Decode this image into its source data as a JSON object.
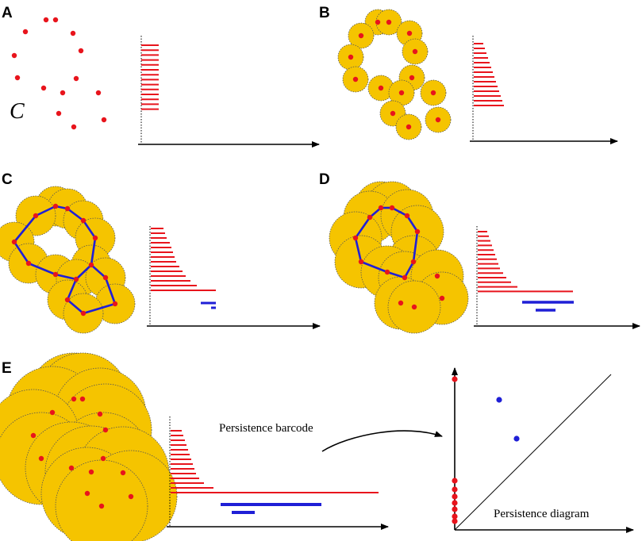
{
  "figure": {
    "panels": [
      {
        "letter": "A",
        "cloud_label": "C"
      },
      {
        "letter": "B"
      },
      {
        "letter": "C"
      },
      {
        "letter": "D"
      },
      {
        "letter": "E"
      }
    ],
    "barcode_label": "Persistence barcode",
    "diagram_label": "Persistence diagram"
  },
  "colors": {
    "point": "#e8141c",
    "disk_fill": "#f5c400",
    "disk_edge": "#555555",
    "h0_bar": "#e8141c",
    "h1_bar": "#1f1fd6",
    "edge": "#1f1fd6",
    "axis": "#000000"
  },
  "chart_data": {
    "type": "persistence",
    "point_count": 14,
    "barcodes": [
      {
        "panel": "A",
        "h0_bars": 14,
        "h0_longest": 1.0,
        "h1_bars": 0
      },
      {
        "panel": "B",
        "h0_bars": 14,
        "h0_bar_lengths_relative": [
          1,
          1,
          1,
          1,
          1,
          1,
          1,
          1,
          1,
          1,
          1,
          1,
          1.6,
          2.0
        ],
        "h1_bars": 0
      },
      {
        "panel": "C",
        "h0_bars": 14,
        "h1_bars": 2
      },
      {
        "panel": "D",
        "h0_bars": 14,
        "h1_bars": 2
      },
      {
        "panel": "E",
        "h0_bars": 14,
        "h1_bars": 2
      }
    ],
    "persistence_diagram": {
      "h0_points": 7,
      "h1_points": 2,
      "diagonal": true
    }
  }
}
